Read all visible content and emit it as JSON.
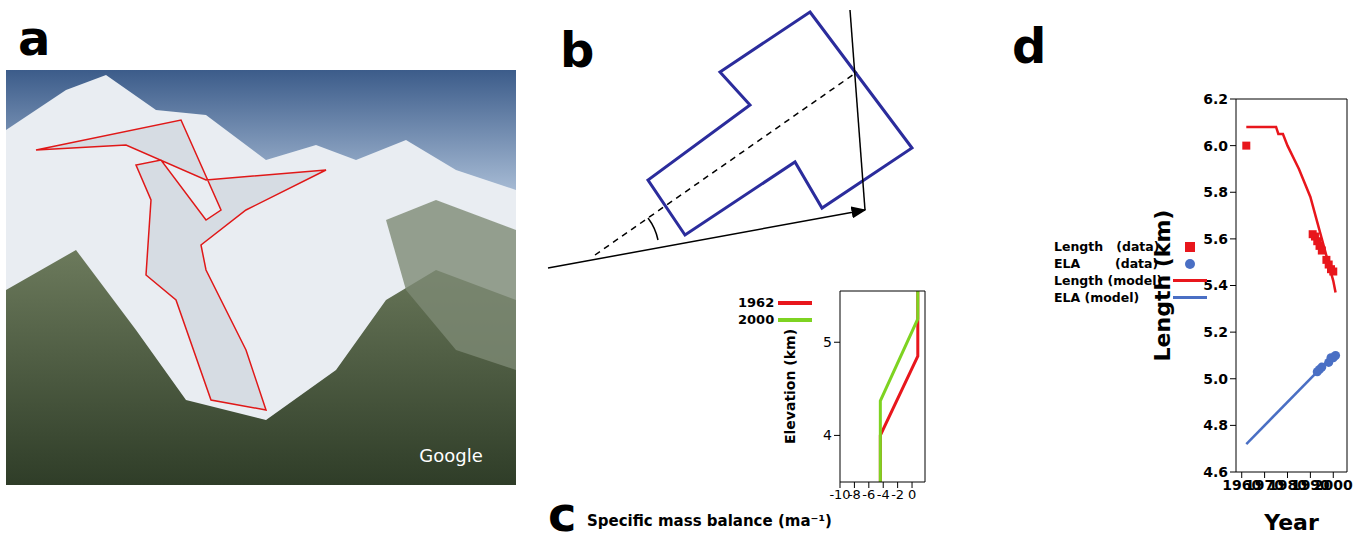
{
  "panel_labels": [
    "a",
    "b",
    "c",
    "d"
  ],
  "photo": {
    "watermark": "Google"
  },
  "chart_data": [
    {
      "type": "line",
      "x_label": "Specific mass balance (ma⁻¹)",
      "y_label": "Elevation (km)",
      "xlim": [
        -10,
        1.8
      ],
      "xticks": [
        -10,
        -8,
        -6,
        -4,
        -2,
        0
      ],
      "ylim": [
        3.5,
        5.55
      ],
      "yticks": [
        4,
        5
      ],
      "legend": "upper left",
      "series": [
        {
          "name": "1962",
          "color": "#e8161c",
          "x": [
            -4.4,
            -4.4,
            0.8,
            0.8
          ],
          "values": [
            3.5,
            4.0,
            4.85,
            5.55
          ]
        },
        {
          "name": "2000",
          "color": "#7ed321",
          "x": [
            -4.4,
            -4.4,
            0.8,
            0.8
          ],
          "values": [
            3.5,
            4.37,
            5.25,
            5.55
          ]
        }
      ]
    },
    {
      "type": "line",
      "x_label": "Year",
      "y_label": "Length (km)",
      "xlim": [
        1957.5,
        2006
      ],
      "xticks": [
        1960,
        1970,
        1980,
        1990,
        2000
      ],
      "ylim": [
        4.6,
        6.2
      ],
      "yticks": [
        4.6,
        4.8,
        {
          "value": 5.0,
          "label": "5.0"
        },
        5.2,
        5.4,
        5.6,
        5.8,
        {
          "value": 6.0,
          "label": "6.0"
        },
        6.2
      ],
      "legend": "left",
      "series": [
        {
          "name": "Length   (data)",
          "type": "scatter",
          "marker": "square",
          "color": "#e8161c",
          "x": [
            1962,
            1991,
            1992,
            1993,
            1994,
            1995,
            1997,
            1998,
            1999,
            2000
          ],
          "values": [
            6.0,
            5.62,
            5.61,
            5.59,
            5.57,
            5.55,
            5.51,
            5.49,
            5.47,
            5.46
          ]
        },
        {
          "name": "ELA        (data)",
          "type": "scatter",
          "marker": "circle",
          "color": "#4a6fc4",
          "x": [
            1993,
            1994,
            1995,
            1998,
            1999,
            2000,
            2001
          ],
          "values": [
            5.03,
            5.04,
            5.05,
            5.07,
            5.09,
            5.09,
            5.1
          ]
        },
        {
          "name": "Length (model)",
          "type": "line",
          "marker": "none",
          "color": "#e8161c",
          "x": [
            1962,
            1975,
            1976,
            1978,
            1980,
            1985,
            1990,
            1995,
            2000,
            2001
          ],
          "values": [
            6.08,
            6.08,
            6.05,
            6.05,
            6.0,
            5.9,
            5.78,
            5.6,
            5.42,
            5.37
          ]
        },
        {
          "name": "ELA (model)",
          "type": "line",
          "marker": "none",
          "color": "#4a6fc4",
          "x": [
            1962,
            2001
          ],
          "values": [
            4.72,
            5.11
          ]
        }
      ]
    }
  ]
}
